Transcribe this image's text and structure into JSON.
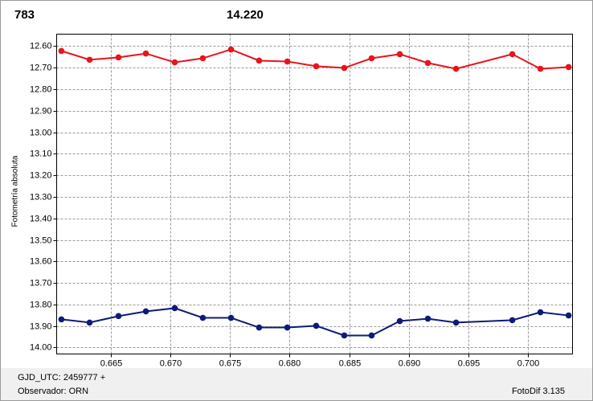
{
  "chart_data": {
    "type": "line",
    "annotations": [
      {
        "text": "783",
        "color": "#e8141b"
      },
      {
        "text": "14.220",
        "color": "#0e1a7a"
      }
    ],
    "y_label": "Fotometría absoluta",
    "footer": [
      "GJD_UTC: 2459777 +",
      "Observador: ORN",
      "FotoDif 3.135"
    ],
    "x": [
      0.66081,
      0.66318,
      0.66561,
      0.66791,
      0.67034,
      0.6727,
      0.67507,
      0.67743,
      0.6798,
      0.68223,
      0.68459,
      0.68689,
      0.68926,
      0.69162,
      0.69399,
      0.69872,
      0.70108,
      0.70345
    ],
    "series": [
      {
        "color": "#e8141b",
        "values": [
          12.622,
          12.663,
          12.652,
          12.634,
          12.675,
          12.656,
          12.615,
          12.667,
          12.671,
          12.693,
          12.701,
          12.656,
          12.637,
          12.678,
          12.705,
          12.637,
          12.705,
          12.697
        ]
      },
      {
        "color": "#0e1a7a",
        "values": [
          13.869,
          13.884,
          13.854,
          13.832,
          13.817,
          13.862,
          13.862,
          13.907,
          13.907,
          13.899,
          13.944,
          13.944,
          13.877,
          13.866,
          13.884,
          13.873,
          13.836,
          13.851
        ]
      }
    ],
    "xlim": [
      0.66041,
      0.70378
    ],
    "ylim": [
      12.544,
      14.03
    ],
    "y_inverted": true,
    "xticks": [
      0.665,
      {
        "value": 0.67,
        "label": "0.670"
      },
      0.675,
      {
        "value": 0.68,
        "label": "0.680"
      },
      0.685,
      {
        "value": 0.69,
        "label": "0.690"
      },
      0.695,
      {
        "value": 0.7,
        "label": "0.700"
      }
    ],
    "yticks": [
      {
        "value": 12.6,
        "label": "12.60"
      },
      {
        "value": 12.7,
        "label": "12.70"
      },
      {
        "value": 12.8,
        "label": "12.80"
      },
      {
        "value": 12.9,
        "label": "12.90"
      },
      {
        "value": 13.0,
        "label": "13.00"
      },
      {
        "value": 13.1,
        "label": "13.10"
      },
      {
        "value": 13.2,
        "label": "13.20"
      },
      {
        "value": 13.3,
        "label": "13.30"
      },
      {
        "value": 13.4,
        "label": "13.40"
      },
      {
        "value": 13.5,
        "label": "13.50"
      },
      {
        "value": 13.6,
        "label": "13.60"
      },
      {
        "value": 13.7,
        "label": "13.70"
      },
      {
        "value": 13.8,
        "label": "13.80"
      },
      {
        "value": 13.9,
        "label": "13.90"
      },
      {
        "value": 14.0,
        "label": "14.00"
      }
    ],
    "grid": true
  }
}
